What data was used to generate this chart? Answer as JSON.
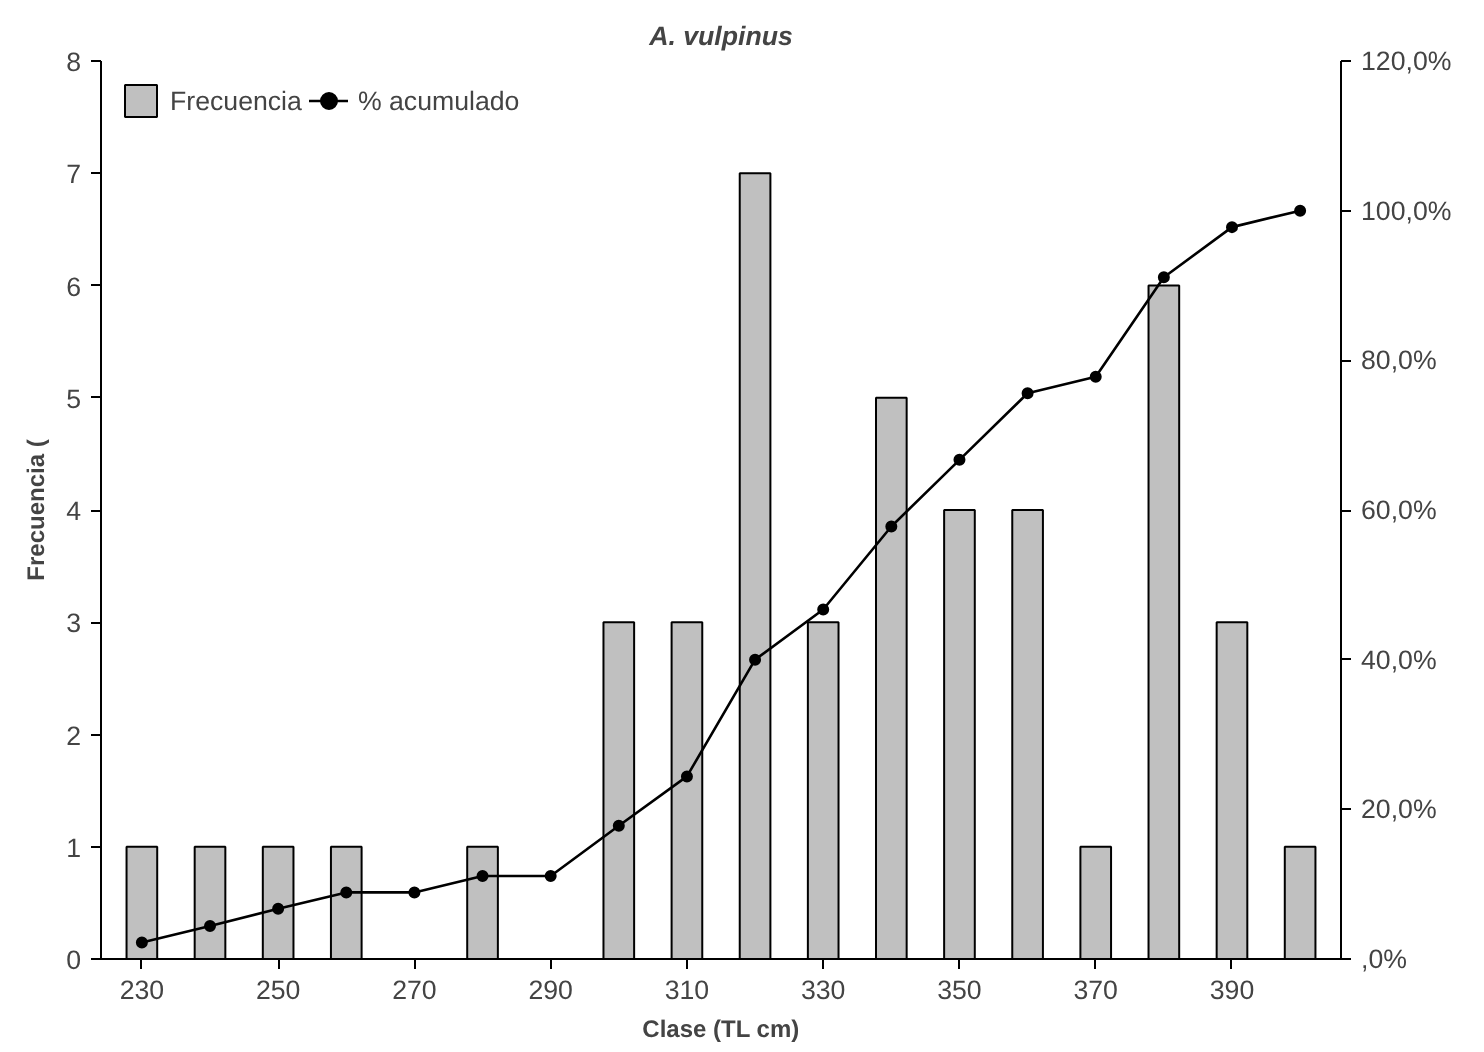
{
  "chart_data": {
    "type": "bar",
    "title": "A. vulpinus",
    "xlabel": "Clase (TL cm)",
    "ylabel": "Frecuencia (",
    "categories": [
      "230",
      null,
      "250",
      null,
      "270",
      null,
      "290",
      null,
      "310",
      null,
      "330",
      null,
      "350",
      null,
      "370",
      null,
      "390",
      null
    ],
    "series": [
      {
        "name": "Frecuencia",
        "color": "#c0c0c0",
        "values": [
          1,
          1,
          1,
          1,
          null,
          1,
          null,
          3,
          3,
          7,
          3,
          5,
          4,
          4,
          1,
          6,
          3,
          1
        ]
      },
      {
        "name": "% acumulado",
        "type": "line",
        "axis": "y2",
        "color": "#000000",
        "values": [
          2.2,
          4.4,
          6.7,
          8.9,
          8.9,
          11.1,
          11.1,
          17.8,
          24.4,
          40.0,
          46.7,
          57.8,
          66.7,
          75.6,
          77.8,
          91.1,
          97.8,
          100.0
        ]
      }
    ],
    "ylim": [
      0,
      8
    ],
    "yticks": [
      0,
      1,
      2,
      3,
      4,
      5,
      6,
      7,
      8
    ],
    "y2lim": [
      0,
      120
    ],
    "y2ticks": [
      {
        "value": 0,
        "label": ",0%"
      },
      {
        "value": 20,
        "label": "20,0%"
      },
      {
        "value": 40,
        "label": "40,0%"
      },
      {
        "value": 60,
        "label": "60,0%"
      },
      {
        "value": 80,
        "label": "80,0%"
      },
      {
        "value": 100,
        "label": "100,0%"
      },
      {
        "value": 120,
        "label": "120,0%"
      }
    ],
    "legend": "top left",
    "marker": "circle",
    "line_style": "solid"
  }
}
